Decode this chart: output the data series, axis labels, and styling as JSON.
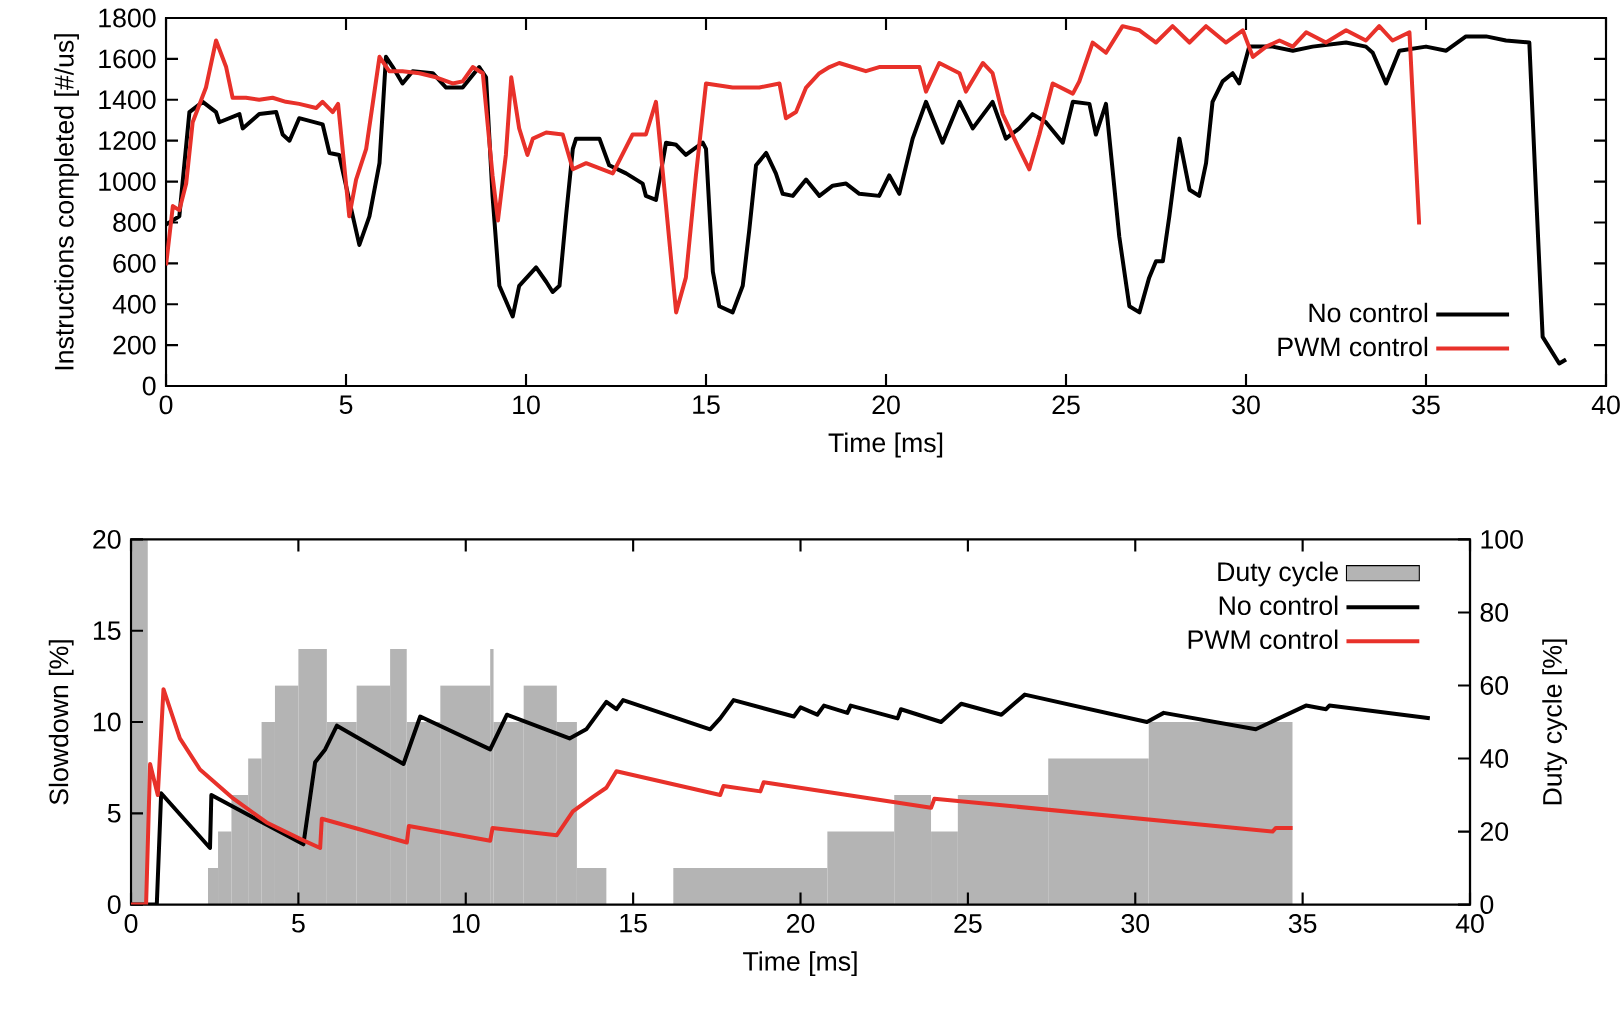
{
  "chart_data": [
    {
      "type": "line",
      "xlabel": "Time [ms]",
      "ylabel": "Instructions completed [#/us]",
      "xlim": [
        0,
        40
      ],
      "xticks": [
        0,
        5,
        10,
        15,
        20,
        25,
        30,
        35,
        40
      ],
      "ylim": [
        0,
        1800
      ],
      "yticks": [
        0,
        200,
        400,
        600,
        800,
        1000,
        1200,
        1400,
        1600,
        1800
      ],
      "legend": "bottom right",
      "series": [
        {
          "name": "No control",
          "color": "#000000",
          "x": [
            0,
            0.37,
            0.65,
            1.02,
            1.39,
            1.48,
            2.04,
            2.13,
            2.59,
            3.06,
            3.24,
            3.43,
            3.7,
            4.35,
            4.54,
            4.81,
            5.19,
            5.37,
            5.65,
            5.93,
            6.11,
            6.3,
            6.57,
            6.85,
            7.41,
            7.78,
            8.24,
            8.7,
            8.89,
            9.07,
            9.26,
            9.63,
            9.81,
            10.28,
            10.56,
            10.74,
            10.93,
            11.11,
            11.3,
            11.39,
            12.04,
            12.31,
            12.78,
            13.24,
            13.33,
            13.61,
            13.89,
            14.17,
            14.44,
            14.91,
            15.0,
            15.19,
            15.37,
            15.74,
            16.02,
            16.2,
            16.39,
            16.67,
            16.94,
            17.13,
            17.41,
            17.78,
            18.15,
            18.52,
            18.89,
            19.26,
            19.81,
            20.09,
            20.37,
            20.74,
            21.11,
            21.57,
            22.04,
            22.41,
            22.96,
            23.33,
            23.7,
            24.07,
            24.44,
            24.91,
            25.19,
            25.65,
            25.83,
            26.11,
            26.48,
            26.76,
            27.04,
            27.31,
            27.5,
            27.69,
            27.87,
            28.15,
            28.43,
            28.7,
            28.89,
            29.07,
            29.35,
            29.63,
            29.81,
            30.09,
            30.74,
            31.3,
            31.85,
            32.78,
            33.33,
            33.52,
            33.89,
            34.26,
            35.0,
            35.56,
            36.11,
            36.67,
            37.22,
            37.87,
            38.06,
            38.24,
            38.7,
            38.89
          ],
          "values": [
            790,
            830,
            1340,
            1390,
            1340,
            1290,
            1330,
            1260,
            1330,
            1340,
            1230,
            1200,
            1310,
            1280,
            1140,
            1130,
            830,
            690,
            830,
            1090,
            1610,
            1560,
            1480,
            1540,
            1530,
            1460,
            1460,
            1560,
            1510,
            930,
            490,
            340,
            490,
            580,
            510,
            460,
            490,
            830,
            1160,
            1210,
            1210,
            1080,
            1040,
            990,
            930,
            910,
            1190,
            1180,
            1130,
            1190,
            1160,
            560,
            390,
            360,
            490,
            760,
            1080,
            1140,
            1040,
            940,
            930,
            1010,
            930,
            980,
            990,
            940,
            930,
            1030,
            940,
            1210,
            1390,
            1190,
            1390,
            1260,
            1390,
            1210,
            1260,
            1330,
            1290,
            1190,
            1390,
            1380,
            1230,
            1380,
            730,
            390,
            360,
            530,
            610,
            610,
            830,
            1210,
            960,
            930,
            1090,
            1390,
            1490,
            1530,
            1480,
            1660,
            1660,
            1640,
            1660,
            1680,
            1660,
            1630,
            1480,
            1640,
            1660,
            1640,
            1710,
            1710,
            1690,
            1680,
            930,
            240,
            110,
            130
          ]
        },
        {
          "name": "PWM control",
          "color": "#e8312a",
          "x": [
            0,
            0.19,
            0.37,
            0.56,
            0.74,
            1.11,
            1.39,
            1.67,
            1.85,
            2.22,
            2.59,
            2.96,
            3.33,
            3.7,
            4.17,
            4.35,
            4.63,
            4.78,
            5.09,
            5.28,
            5.56,
            5.93,
            6.2,
            6.57,
            7.04,
            7.5,
            7.96,
            8.24,
            8.52,
            8.8,
            9.07,
            9.22,
            9.44,
            9.59,
            9.81,
            10.04,
            10.19,
            10.56,
            11.02,
            11.3,
            11.67,
            12.41,
            12.96,
            13.33,
            13.61,
            13.89,
            14.17,
            14.44,
            14.72,
            15.0,
            15.74,
            16.48,
            17.04,
            17.22,
            17.5,
            17.78,
            18.15,
            18.43,
            18.7,
            19.07,
            19.44,
            19.81,
            20.37,
            20.93,
            21.11,
            21.48,
            22.04,
            22.22,
            22.69,
            22.96,
            23.24,
            23.7,
            23.98,
            24.26,
            24.63,
            25.19,
            25.37,
            25.74,
            26.11,
            26.57,
            27.04,
            27.5,
            27.96,
            28.43,
            28.89,
            29.44,
            29.91,
            30.19,
            30.56,
            30.93,
            31.3,
            31.67,
            32.22,
            32.78,
            33.33,
            33.7,
            34.07,
            34.54,
            34.81
          ],
          "values": [
            590,
            880,
            860,
            990,
            1290,
            1460,
            1690,
            1560,
            1410,
            1410,
            1400,
            1410,
            1390,
            1380,
            1360,
            1390,
            1340,
            1380,
            830,
            1010,
            1160,
            1610,
            1540,
            1540,
            1530,
            1510,
            1480,
            1490,
            1560,
            1530,
            1030,
            810,
            1130,
            1510,
            1260,
            1130,
            1210,
            1240,
            1230,
            1060,
            1090,
            1040,
            1230,
            1230,
            1390,
            880,
            360,
            530,
            1030,
            1480,
            1460,
            1460,
            1480,
            1310,
            1340,
            1460,
            1530,
            1560,
            1580,
            1560,
            1540,
            1560,
            1560,
            1560,
            1440,
            1580,
            1530,
            1440,
            1580,
            1530,
            1330,
            1160,
            1060,
            1230,
            1480,
            1430,
            1490,
            1680,
            1630,
            1760,
            1740,
            1680,
            1760,
            1680,
            1760,
            1680,
            1740,
            1610,
            1660,
            1690,
            1660,
            1730,
            1680,
            1740,
            1690,
            1760,
            1690,
            1730,
            790
          ]
        }
      ]
    },
    {
      "type": "line",
      "xlabel": "Time [ms]",
      "ylabel": "Slowdown [%]",
      "y2label": "Duty cycle [%]",
      "xlim": [
        0,
        40
      ],
      "xticks": [
        0,
        5,
        10,
        15,
        20,
        25,
        30,
        35,
        40
      ],
      "ylim": [
        0,
        20
      ],
      "yticks": [
        0,
        5,
        10,
        15,
        20
      ],
      "y2lim": [
        0,
        100
      ],
      "y2ticks": [
        0,
        20,
        40,
        60,
        80,
        100
      ],
      "legend": "top right",
      "series": [
        {
          "name": "Duty cycle",
          "type": "histogram",
          "axis": "y2",
          "color": "#b4b4b4",
          "bins": [
            0,
            0.5,
            2.3,
            2.6,
            3.0,
            3.5,
            3.9,
            4.3,
            5.0,
            5.85,
            6.74,
            7.74,
            8.24,
            9.24,
            10.73,
            10.83,
            11.73,
            12.72,
            13.32,
            14.2,
            16.2,
            20.8,
            22.8,
            23.9,
            24.7,
            27.4,
            30.4,
            34.7
          ],
          "values": [
            100,
            0,
            10,
            20,
            30,
            40,
            50,
            60,
            70,
            50,
            60,
            70,
            50,
            60,
            70,
            50,
            60,
            50,
            10,
            0,
            10,
            20,
            30,
            20,
            30,
            40,
            50
          ]
        },
        {
          "name": "No control",
          "color": "#000000",
          "x": [
            0,
            0.77,
            0.9,
            2.36,
            2.4,
            5.15,
            5.5,
            5.8,
            6.15,
            8.14,
            8.64,
            10.73,
            11.23,
            13.1,
            13.6,
            14.2,
            14.5,
            14.7,
            17.3,
            17.6,
            18.0,
            19.8,
            20.0,
            20.5,
            20.7,
            21.4,
            21.5,
            22.9,
            23.0,
            24.2,
            24.8,
            26.0,
            26.7,
            30.35,
            30.85,
            33.6,
            35.1,
            35.7,
            35.8,
            38.8
          ],
          "values": [
            0,
            0,
            6.1,
            3.1,
            6.0,
            3.3,
            7.8,
            8.5,
            9.8,
            7.7,
            10.3,
            8.5,
            10.4,
            9.1,
            9.6,
            11.1,
            10.7,
            11.2,
            9.6,
            10.2,
            11.2,
            10.3,
            10.8,
            10.4,
            10.9,
            10.5,
            10.9,
            10.2,
            10.7,
            10.0,
            11.0,
            10.4,
            11.5,
            10.0,
            10.5,
            9.6,
            10.9,
            10.7,
            10.9,
            10.2
          ]
        },
        {
          "name": "PWM control",
          "color": "#e8312a",
          "x": [
            0,
            0.45,
            0.57,
            0.8,
            0.97,
            1.46,
            2.06,
            3.06,
            4.05,
            5.05,
            5.65,
            5.7,
            8.24,
            8.3,
            10.73,
            10.8,
            12.72,
            13.2,
            13.8,
            14.2,
            14.5,
            17.6,
            17.7,
            18.8,
            18.9,
            23.9,
            24.0,
            34.1,
            34.2,
            34.7
          ],
          "values": [
            0,
            0,
            7.7,
            6.0,
            11.8,
            9.1,
            7.4,
            5.8,
            4.5,
            3.6,
            3.1,
            4.7,
            3.4,
            4.3,
            3.5,
            4.2,
            3.8,
            5.1,
            5.9,
            6.4,
            7.3,
            6.0,
            6.5,
            6.2,
            6.7,
            5.3,
            5.8,
            4.0,
            4.2,
            4.2
          ]
        }
      ]
    }
  ]
}
